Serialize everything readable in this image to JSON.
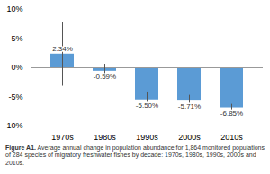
{
  "chart_data": {
    "type": "bar",
    "categories": [
      "1970s",
      "1980s",
      "1990s",
      "2000s",
      "2010s"
    ],
    "values": [
      2.34,
      -0.59,
      -5.5,
      -5.71,
      -6.85
    ],
    "value_labels": [
      "2.34%",
      "-0.59%",
      "-5.50%",
      "-5.71%",
      "-6.85%"
    ],
    "data_labels": true,
    "error_upper": [
      5.5,
      1.2,
      1.2,
      1.0,
      0.6
    ],
    "error_lower": [
      5.5,
      1.2,
      1.2,
      1.0,
      0.6
    ],
    "color": "#5b9bd5",
    "ylim": [
      -10,
      10
    ],
    "yticks": [
      {
        "value": -10,
        "label": "-10%"
      },
      {
        "value": -5,
        "label": "-5%"
      },
      {
        "value": 0,
        "label": "0%"
      },
      {
        "value": 5,
        "label": "5%"
      },
      {
        "value": 10,
        "label": "10%"
      }
    ],
    "grid": false,
    "caption": {
      "bold": "Figure A1.",
      "text": " Average annual change in population abundance for 1,864 monitored populations of 284 species of migratory freshwater fishes by decade: 1970s, 1980s, 1990s, 2000s and 2010s."
    }
  }
}
